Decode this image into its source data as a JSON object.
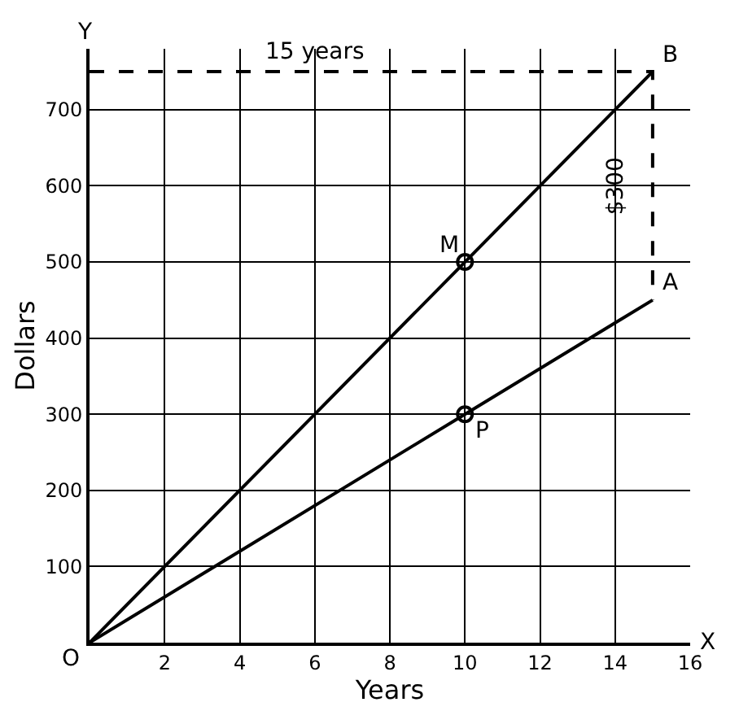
{
  "chart_data": {
    "type": "line",
    "xlabel": "Years",
    "ylabel": "Dollars",
    "x": [
      0,
      10,
      15
    ],
    "series": [
      {
        "name": "B",
        "color": "#000000",
        "values": [
          0,
          500,
          750
        ]
      },
      {
        "name": "A",
        "color": "#000000",
        "values": [
          0,
          300,
          450
        ]
      },
      {
        "type": "line",
        "x": [
          0,
          15,
          15
        ],
        "values": [
          750,
          750,
          450
        ],
        "color": "#000000",
        "line_style": "dashed"
      },
      {
        "type": "scatter",
        "x": [
          10,
          10
        ],
        "values": [
          500,
          300
        ],
        "color": "#000000",
        "marker": "circle"
      }
    ],
    "annotations": [
      {
        "text": "M",
        "x": 10,
        "y": 500
      },
      {
        "text": "P",
        "x": 10,
        "y": 300
      },
      {
        "text": "15 years",
        "x": 6,
        "y": 750
      },
      {
        "text": "$300",
        "x": 15,
        "y": 600
      },
      {
        "text": "O",
        "x": 0,
        "y": 0
      },
      "X",
      "Y"
    ],
    "xlim": [
      0,
      16
    ],
    "xticks": [
      2,
      4,
      6,
      8,
      10,
      12,
      14,
      16
    ],
    "ylim": [
      0,
      780
    ],
    "yticks": [
      100,
      200,
      300,
      400,
      500,
      600,
      700
    ],
    "grid": true,
    "marker": "none",
    "line_style": "solid"
  }
}
